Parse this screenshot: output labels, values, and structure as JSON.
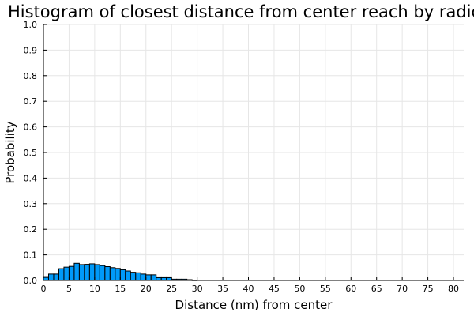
{
  "chart_data": {
    "type": "bar",
    "title": "Histogram of closest distance from center reach by radic",
    "xlabel": "Distance (nm) from center",
    "ylabel": "Probability",
    "xlim": [
      0,
      82
    ],
    "ylim": [
      0,
      1.0
    ],
    "xticks": [
      0,
      5,
      10,
      15,
      20,
      25,
      30,
      35,
      40,
      45,
      50,
      55,
      60,
      65,
      70,
      75,
      80
    ],
    "yticks": [
      0.0,
      0.1,
      0.2,
      0.3,
      0.4,
      0.5,
      0.6,
      0.7,
      0.8,
      0.9,
      1.0
    ],
    "ytick_labels": [
      "0.0",
      "0.1",
      "0.2",
      "0.3",
      "0.4",
      "0.5",
      "0.6",
      "0.7",
      "0.8",
      "0.9",
      "1.0"
    ],
    "grid": true,
    "bin_width": 1,
    "bins_start": [
      0,
      1,
      2,
      3,
      4,
      5,
      6,
      7,
      8,
      9,
      10,
      11,
      12,
      13,
      14,
      15,
      16,
      17,
      18,
      19,
      20,
      21,
      22,
      23,
      24,
      25,
      26,
      27,
      28,
      29
    ],
    "values": [
      0.012,
      0.025,
      0.025,
      0.046,
      0.052,
      0.055,
      0.067,
      0.062,
      0.063,
      0.065,
      0.062,
      0.058,
      0.054,
      0.05,
      0.047,
      0.042,
      0.037,
      0.032,
      0.03,
      0.025,
      0.022,
      0.022,
      0.011,
      0.011,
      0.011,
      0.005,
      0.005,
      0.005,
      0.003,
      0.001
    ],
    "bar_color": "#009AF9"
  }
}
